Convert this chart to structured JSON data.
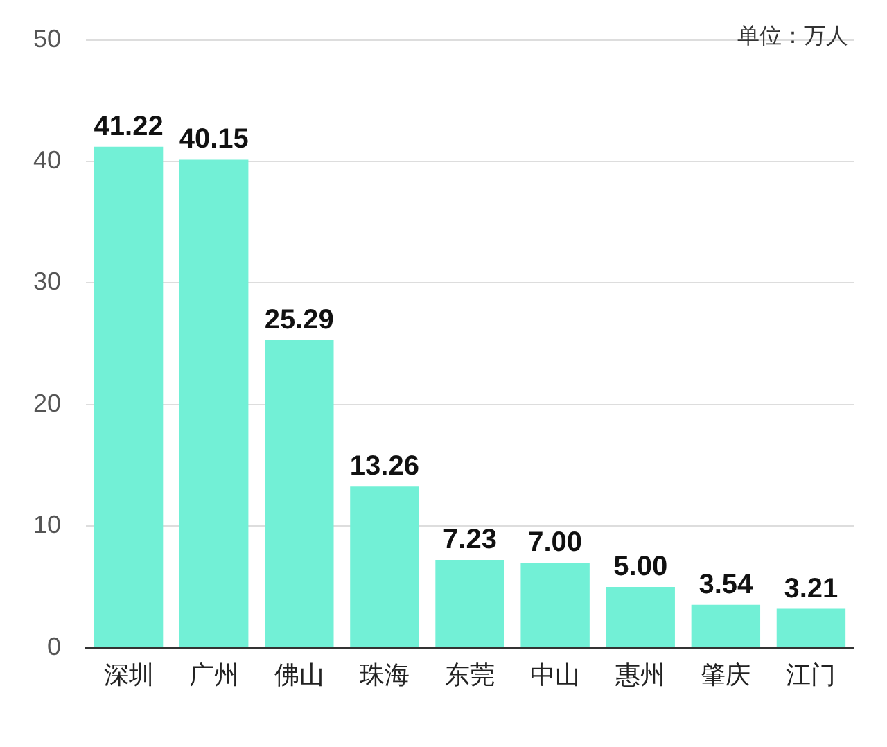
{
  "chart_data": {
    "type": "bar",
    "categories": [
      "深圳",
      "广州",
      "佛山",
      "珠海",
      "东莞",
      "中山",
      "惠州",
      "肇庆",
      "江门"
    ],
    "values": [
      41.22,
      40.15,
      25.29,
      13.26,
      7.23,
      7.0,
      5.0,
      3.54,
      3.21
    ],
    "value_labels": [
      "41.22",
      "40.15",
      "25.29",
      "13.26",
      "7.23",
      "7.00",
      "5.00",
      "3.54",
      "3.21"
    ],
    "color": "#72f0d6",
    "ylim": [
      0,
      50
    ],
    "yticks": [
      0,
      10,
      20,
      30,
      40,
      50
    ],
    "grid": "y",
    "annotations": [
      "单位：万人"
    ]
  }
}
